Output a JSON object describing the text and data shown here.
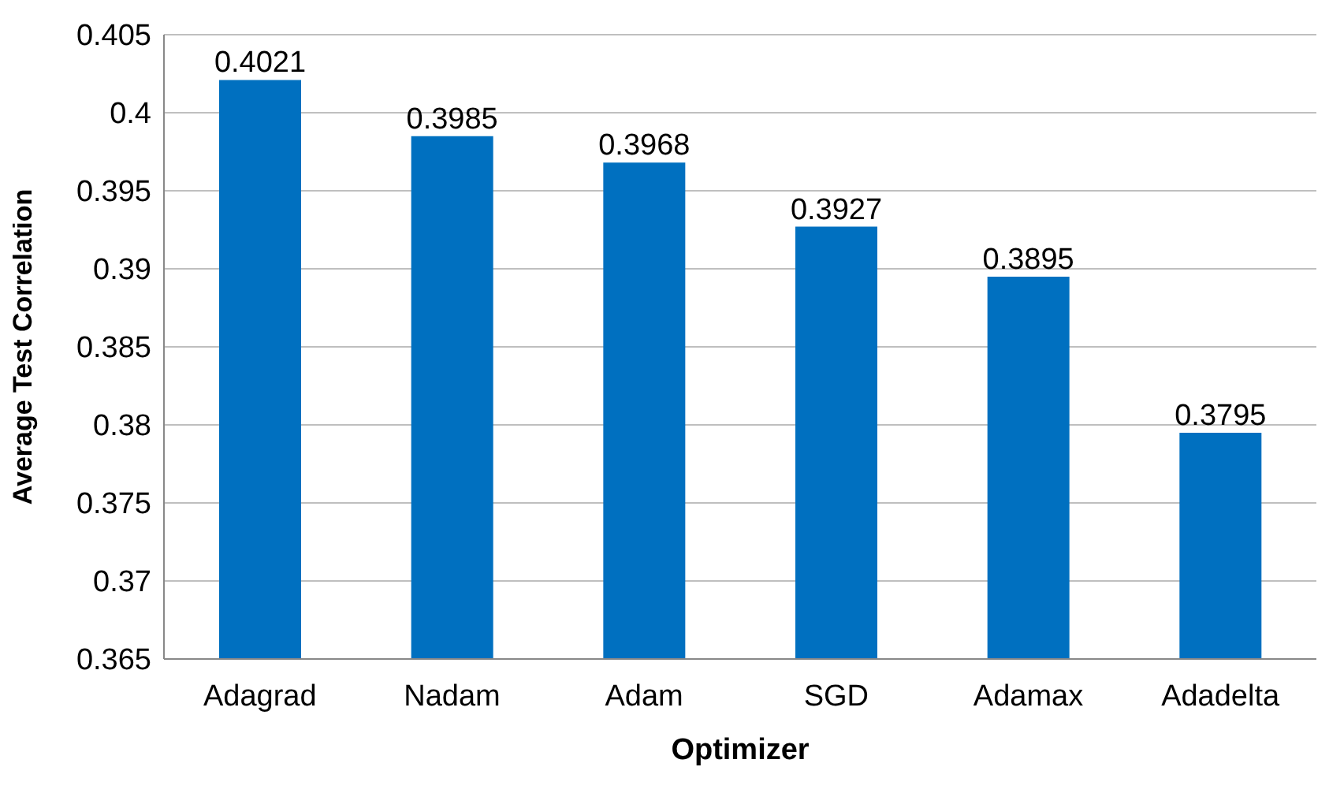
{
  "chart_data": {
    "type": "bar",
    "xlabel": "Optimizer",
    "ylabel": "Average Test Correlation",
    "categories": [
      "Adagrad",
      "Nadam",
      "Adam",
      "SGD",
      "Adamax",
      "Adadelta"
    ],
    "values": [
      0.4021,
      0.3985,
      0.3968,
      0.3927,
      0.3895,
      0.3795
    ],
    "color": "#0070c0",
    "ylim": [
      0.365,
      0.405
    ],
    "yticks": [
      0.365,
      0.37,
      0.375,
      0.38,
      0.385,
      0.39,
      0.395,
      0.4,
      0.405
    ],
    "grid": "y",
    "data_labels": true,
    "legend": false
  }
}
